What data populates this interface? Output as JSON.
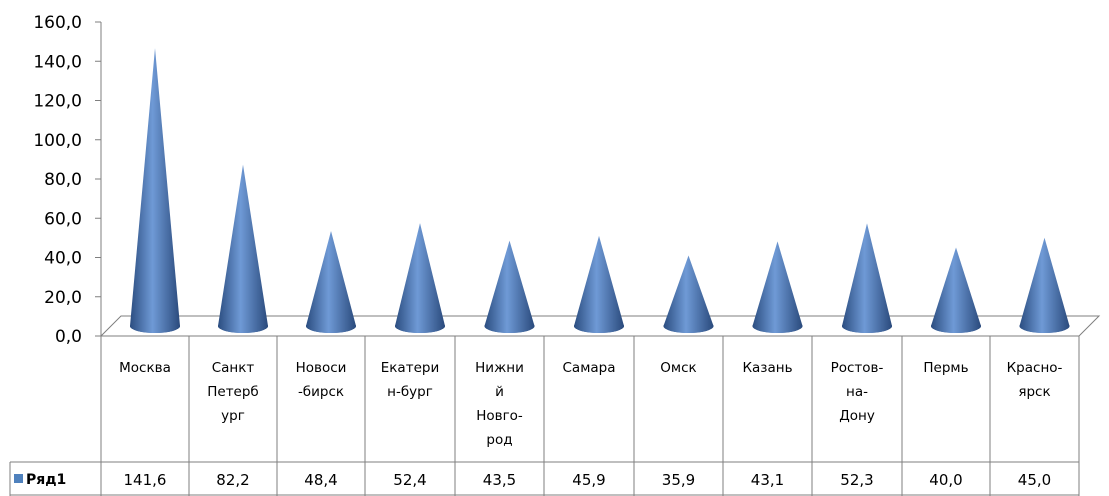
{
  "chart_data": {
    "type": "bar",
    "shape": "cone",
    "view": "3d",
    "categories": [
      [
        "Москва"
      ],
      [
        "Санкт",
        "Петерб",
        "ург"
      ],
      [
        "Новоси",
        "-бирск"
      ],
      [
        "Екатери",
        "н-бург"
      ],
      [
        "Нижни",
        "й",
        "Новго-",
        "род"
      ],
      [
        "Самара"
      ],
      [
        "Омск"
      ],
      [
        "Казань"
      ],
      [
        "Ростов-",
        "на-",
        "Дону"
      ],
      [
        "Пермь"
      ],
      [
        "Красно-",
        "ярск"
      ]
    ],
    "series": [
      {
        "name": "Ряд1",
        "values": [
          141.6,
          82.2,
          48.4,
          52.4,
          43.5,
          45.9,
          35.9,
          43.1,
          52.3,
          40.0,
          45.0
        ],
        "value_labels": [
          "141,6",
          "82,2",
          "48,4",
          "52,4",
          "43,5",
          "45,9",
          "35,9",
          "43,1",
          "52,3",
          "40,0",
          "45,0"
        ],
        "color": "#4f81bd"
      }
    ],
    "yticks": [
      "0,0",
      "20,0",
      "40,0",
      "60,0",
      "80,0",
      "100,0",
      "120,0",
      "140,0",
      "160,0"
    ],
    "ylim": [
      0,
      160
    ],
    "data_table": true,
    "legend": "data-table",
    "grid": false
  }
}
